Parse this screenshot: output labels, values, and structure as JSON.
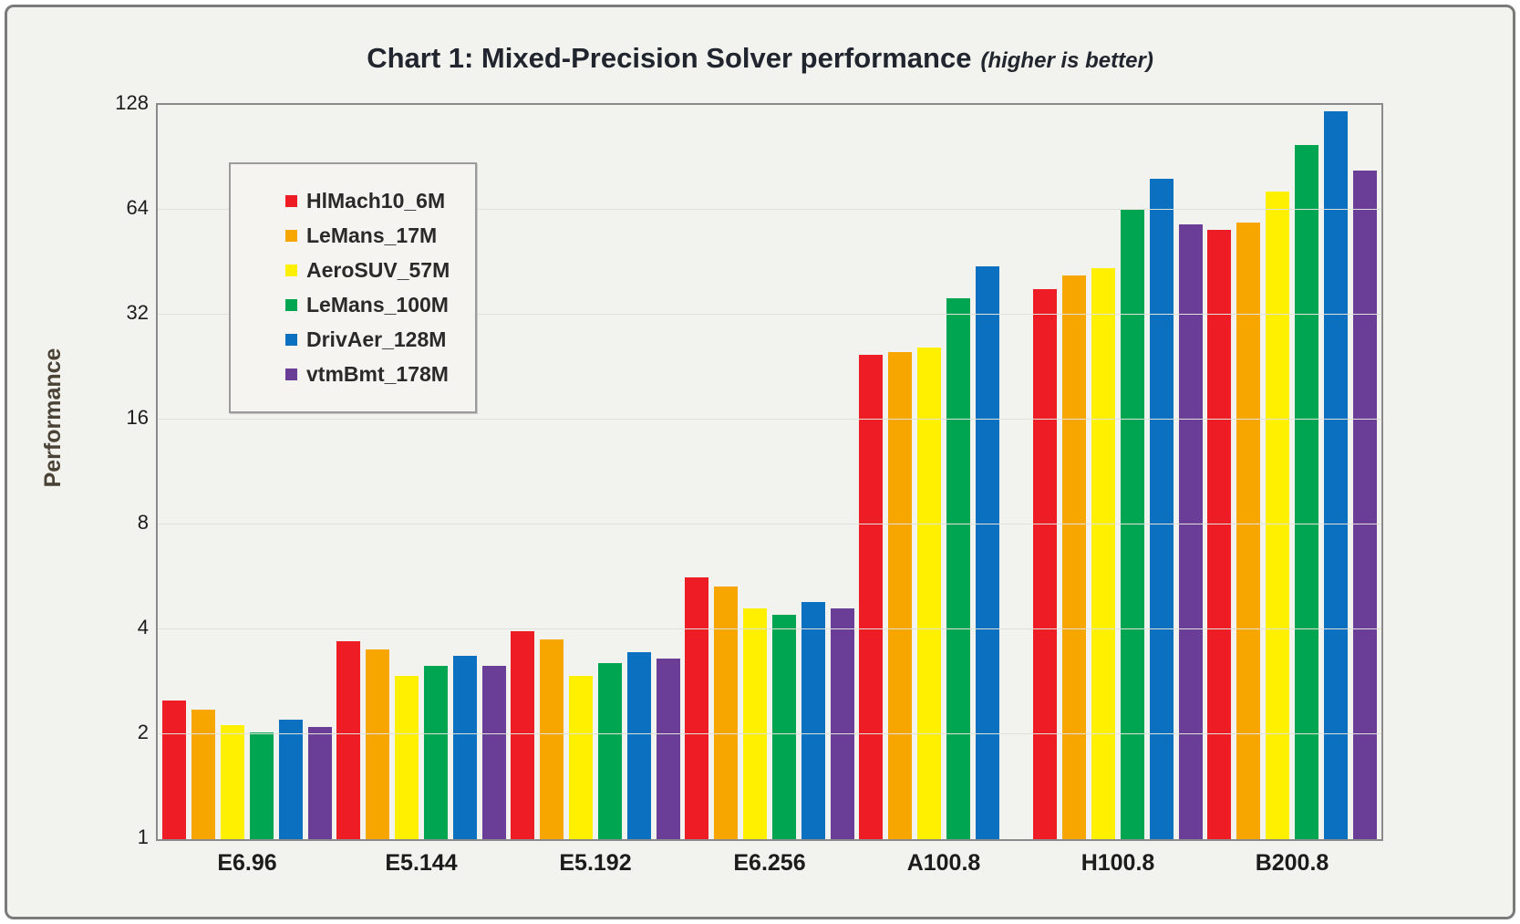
{
  "title": "Chart 1: Mixed-Precision Solver performance",
  "title_suffix": "(higher is better)",
  "chart_data": {
    "type": "bar",
    "title": "Chart 1: Mixed-Precision Solver performance (higher is better)",
    "xlabel": "",
    "ylabel": "Performance",
    "yscale": "log2",
    "ylim": [
      1,
      128
    ],
    "yticks": [
      1,
      2,
      4,
      8,
      16,
      32,
      64,
      128
    ],
    "grid": true,
    "legend_position": "inside-top-left",
    "categories": [
      "E6.96",
      "E5.144",
      "E5.192",
      "E6.256",
      "A100.8",
      "H100.8",
      "B200.8"
    ],
    "series": [
      {
        "name": "HlMach10_6M",
        "color": "#ee1c25",
        "values": [
          2.5,
          3.7,
          3.95,
          5.65,
          24.5,
          38,
          56
        ]
      },
      {
        "name": "LeMans_17M",
        "color": "#f7a600",
        "values": [
          2.35,
          3.5,
          3.75,
          5.3,
          25,
          41.5,
          59
        ]
      },
      {
        "name": "AeroSUV_57M",
        "color": "#fff000",
        "values": [
          2.13,
          2.95,
          2.95,
          4.6,
          25.7,
          43.5,
          72
        ]
      },
      {
        "name": "LeMans_100M",
        "color": "#00a551",
        "values": [
          2.02,
          3.15,
          3.2,
          4.4,
          35.7,
          64,
          98
        ]
      },
      {
        "name": "DrivAer_128M",
        "color": "#0b70c0",
        "values": [
          2.2,
          3.35,
          3.45,
          4.8,
          44,
          78.5,
          123
        ]
      },
      {
        "name": "vtmBmt_178M",
        "color": "#6a3d97",
        "values": [
          2.1,
          3.15,
          3.3,
          4.6,
          null,
          58,
          83
        ]
      }
    ]
  }
}
